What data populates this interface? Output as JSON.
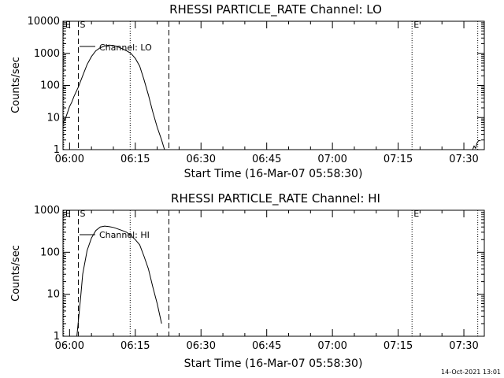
{
  "footer_timestamp": "14-Oct-2021 13:01",
  "chart_data": [
    {
      "type": "line",
      "title": "RHESSI PARTICLE_RATE Channel: LO",
      "xlabel": "Start Time (16-Mar-07 05:58:30)",
      "ylabel": "Counts/sec",
      "yscale": "log",
      "xlim": [
        "05:58:30",
        "07:34:40"
      ],
      "ylim": [
        1,
        10000
      ],
      "x_ticks": [
        "06:00",
        "06:15",
        "06:30",
        "06:45",
        "07:00",
        "07:15",
        "07:30"
      ],
      "y_ticks": [
        "1",
        "10",
        "100",
        "1000",
        "10000"
      ],
      "legend": {
        "label": "Channel: LO",
        "placement": "top-left"
      },
      "markers": [
        {
          "label": "E",
          "time": "05:58:40",
          "style": "dotted"
        },
        {
          "label": "S",
          "time": "06:02:00",
          "style": "dashed"
        },
        {
          "label": "",
          "time": "06:13:50",
          "style": "dotted"
        },
        {
          "label": "",
          "time": "06:22:40",
          "style": "dashed"
        },
        {
          "label": "E",
          "time": "07:18:10",
          "style": "dotted"
        },
        {
          "label": "",
          "time": "07:33:10",
          "style": "dotted"
        }
      ],
      "series": [
        {
          "x": [
            "05:58:30",
            "05:59:00",
            "05:59:30",
            "06:00:00",
            "06:00:30",
            "06:01:00",
            "06:02:00",
            "06:03:00",
            "06:04:00",
            "06:05:00",
            "06:06:00",
            "06:07:00",
            "06:08:00",
            "06:09:00",
            "06:10:00",
            "06:11:00",
            "06:12:00",
            "06:13:00",
            "06:14:00",
            "06:15:00",
            "06:16:00",
            "06:17:00",
            "06:18:00",
            "06:19:00",
            "06:20:00",
            "06:21:00",
            "06:21:40"
          ],
          "y": [
            7,
            9,
            14,
            22,
            30,
            45,
            90,
            200,
            450,
            800,
            1200,
            1500,
            1700,
            1800,
            1750,
            1600,
            1400,
            1200,
            1000,
            700,
            400,
            150,
            50,
            15,
            5,
            2,
            1
          ]
        },
        {
          "x": [
            "07:32:00",
            "07:32:20",
            "07:32:40",
            "07:33:00",
            "07:33:20",
            "07:33:50"
          ],
          "y": [
            1,
            1.3,
            1.1,
            1.6,
            1.9,
            1.9
          ]
        }
      ]
    },
    {
      "type": "line",
      "title": "RHESSI PARTICLE_RATE Channel: HI",
      "xlabel": "Start Time (16-Mar-07 05:58:30)",
      "ylabel": "Counts/sec",
      "yscale": "log",
      "xlim": [
        "05:58:30",
        "07:34:40"
      ],
      "ylim": [
        1,
        1000
      ],
      "x_ticks": [
        "06:00",
        "06:15",
        "06:30",
        "06:45",
        "07:00",
        "07:15",
        "07:30"
      ],
      "y_ticks": [
        "1",
        "10",
        "100",
        "1000"
      ],
      "legend": {
        "label": "Channel: HI",
        "placement": "top-left"
      },
      "markers": [
        {
          "label": "E",
          "time": "05:58:40",
          "style": "dotted"
        },
        {
          "label": "S",
          "time": "06:02:00",
          "style": "dashed"
        },
        {
          "label": "",
          "time": "06:13:50",
          "style": "dotted"
        },
        {
          "label": "",
          "time": "06:22:40",
          "style": "dashed"
        },
        {
          "label": "E",
          "time": "07:18:10",
          "style": "dotted"
        },
        {
          "label": "",
          "time": "07:33:10",
          "style": "dotted"
        }
      ],
      "series": [
        {
          "x": [
            "06:01:40",
            "06:02:30",
            "06:03:00",
            "06:04:00",
            "06:05:00",
            "06:06:00",
            "06:07:00",
            "06:08:00",
            "06:09:00",
            "06:10:00",
            "06:11:00",
            "06:12:00",
            "06:13:00",
            "06:14:00",
            "06:15:00",
            "06:16:00",
            "06:17:00",
            "06:18:00",
            "06:19:00",
            "06:20:00",
            "06:21:00"
          ],
          "y": [
            1,
            8,
            30,
            110,
            220,
            330,
            400,
            420,
            410,
            390,
            360,
            330,
            300,
            250,
            200,
            150,
            80,
            40,
            15,
            6,
            2
          ]
        }
      ]
    }
  ]
}
